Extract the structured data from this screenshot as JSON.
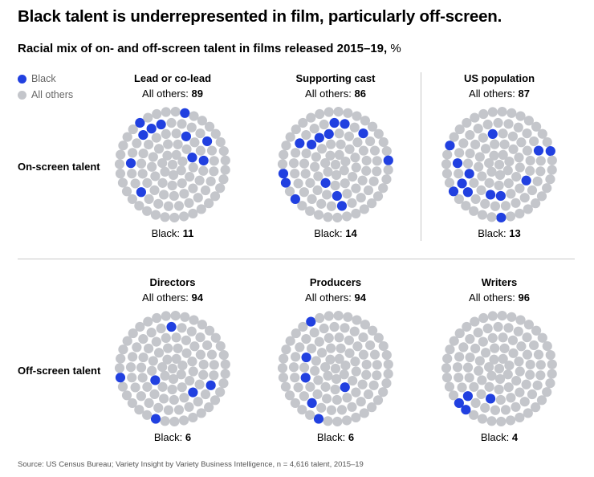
{
  "title": "Black talent is underrepresented in film, particularly off-screen.",
  "subtitle": "Racial mix of on- and off-screen talent in films released 2015–19,",
  "subtitle_unit": "%",
  "colors": {
    "black": "#2140e0",
    "others": "#c4c6cb"
  },
  "legend": [
    {
      "label": "Black",
      "color": "#2140e0"
    },
    {
      "label": "All others",
      "color": "#c4c6cb"
    }
  ],
  "rows": [
    {
      "label": "On-screen talent"
    },
    {
      "label": "Off-screen talent"
    }
  ],
  "source": "Source: US Census Bureau; Variety Insight by Variety Business Intelligence, n = 4,616 talent, 2015–19",
  "chart_data": [
    {
      "type": "dot-circle",
      "row": "On-screen talent",
      "title": "Lead or co-lead",
      "others_label": "All others:",
      "others": 89,
      "black_label": "Black:",
      "black": 11
    },
    {
      "type": "dot-circle",
      "row": "On-screen talent",
      "title": "Supporting cast",
      "others_label": "All others:",
      "others": 86,
      "black_label": "Black:",
      "black": 14
    },
    {
      "type": "dot-circle",
      "row": "On-screen talent",
      "title": "US population",
      "others_label": "All others:",
      "others": 87,
      "black_label": "Black:",
      "black": 13
    },
    {
      "type": "dot-circle",
      "row": "Off-screen talent",
      "title": "Directors",
      "others_label": "All others:",
      "others": 94,
      "black_label": "Black:",
      "black": 6
    },
    {
      "type": "dot-circle",
      "row": "Off-screen talent",
      "title": "Producers",
      "others_label": "All others:",
      "others": 94,
      "black_label": "Black:",
      "black": 6
    },
    {
      "type": "dot-circle",
      "row": "Off-screen talent",
      "title": "Writers",
      "others_label": "All others:",
      "others": 96,
      "black_label": "Black:",
      "black": 4
    }
  ]
}
